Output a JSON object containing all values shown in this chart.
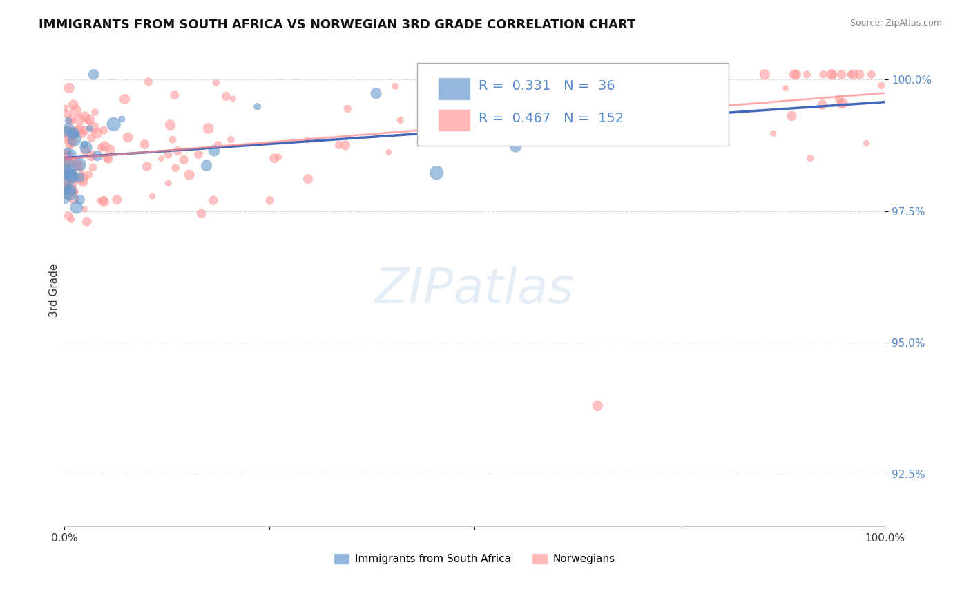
{
  "title": "IMMIGRANTS FROM SOUTH AFRICA VS NORWEGIAN 3RD GRADE CORRELATION CHART",
  "source_text": "Source: ZipAtlas.com",
  "ylabel": "3rd Grade",
  "xlim": [
    0.0,
    1.0
  ],
  "ylim": [
    0.915,
    1.005
  ],
  "yticks": [
    1.0,
    0.975,
    0.95,
    0.925
  ],
  "ytick_labels": [
    "100.0%",
    "97.5%",
    "95.0%",
    "92.5%"
  ],
  "xticks": [
    0.0,
    0.25,
    0.5,
    0.75,
    1.0
  ],
  "xtick_labels": [
    "0.0%",
    "",
    "",
    "",
    "100.0%"
  ],
  "blue_R": 0.331,
  "blue_N": 36,
  "pink_R": 0.467,
  "pink_N": 152,
  "blue_color": "#6699CC",
  "pink_color": "#FF9999",
  "trend_blue": "#4466BB",
  "trend_pink": "#FF8888",
  "legend_label_blue": "Immigrants from South Africa",
  "legend_label_pink": "Norwegians",
  "watermark": "ZIPatlas"
}
